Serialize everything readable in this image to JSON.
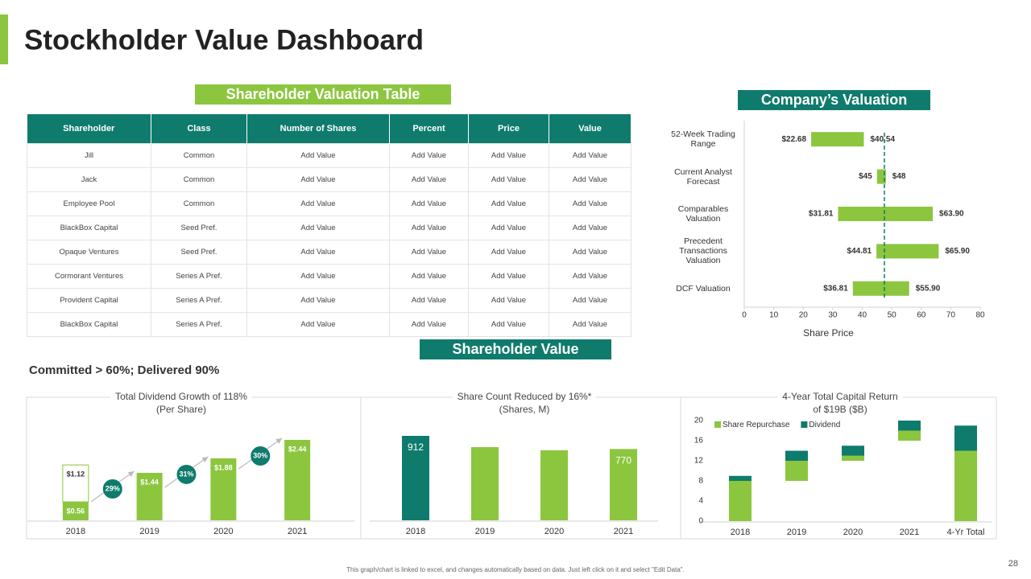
{
  "title": "Stockholder Value Dashboard",
  "page_number": 28,
  "footnote": "This graph/chart is linked to excel, and changes automatically based on data. Just left click on it and select \"Edit Data\".",
  "table": {
    "title": "Shareholder Valuation Table",
    "columns": [
      "Shareholder",
      "Class",
      "Number of Shares",
      "Percent",
      "Price",
      "Value"
    ],
    "rows": [
      [
        "Jill",
        "Common",
        "Add Value",
        "Add Value",
        "Add Value",
        "Add Value"
      ],
      [
        "Jack",
        "Common",
        "Add Value",
        "Add Value",
        "Add Value",
        "Add Value"
      ],
      [
        "Employee Pool",
        "Common",
        "Add Value",
        "Add Value",
        "Add Value",
        "Add Value"
      ],
      [
        "BlackBox Capital",
        "Seed Pref.",
        "Add Value",
        "Add Value",
        "Add Value",
        "Add Value"
      ],
      [
        "Opaque Ventures",
        "Seed Pref.",
        "Add Value",
        "Add Value",
        "Add Value",
        "Add Value"
      ],
      [
        "Cormorant Ventures",
        "Series A Pref.",
        "Add Value",
        "Add Value",
        "Add Value",
        "Add Value"
      ],
      [
        "Provident Capital",
        "Series A Pref.",
        "Add Value",
        "Add Value",
        "Add Value",
        "Add Value"
      ],
      [
        "BlackBox Capital",
        "Series A Pref.",
        "Add Value",
        "Add Value",
        "Add Value",
        "Add Value"
      ]
    ]
  },
  "section_title": "Shareholder Value",
  "section_subtitle": "Committed > 60%; Delivered 90%",
  "chart_data": [
    {
      "type": "range-bar",
      "title": "Company’s Valuation",
      "categories": [
        "52-Week Trading Range",
        "Current Analyst Forecast",
        "Comparables Valuation",
        "Precedent Transactions Valuation",
        "DCF Valuation"
      ],
      "low": [
        22.68,
        45,
        31.81,
        44.81,
        36.81
      ],
      "high": [
        40.54,
        48,
        63.9,
        65.9,
        55.9
      ],
      "low_labels": [
        "$22.68",
        "$45",
        "$31.81",
        "$44.81",
        "$36.81"
      ],
      "high_labels": [
        "$40.54",
        "$48",
        "$63.90",
        "$65.90",
        "$55.90"
      ],
      "color": "#8cc63f",
      "xlim": [
        0,
        80
      ],
      "xticks": [
        0,
        10,
        20,
        30,
        40,
        50,
        60,
        70,
        80
      ],
      "xlabel": "Share Price",
      "reference_line": 47.5,
      "reference_color": "#0f7b6c"
    },
    {
      "type": "stacked-bar",
      "title": "Total Dividend  Growth of 118%",
      "subtitle": "(Per Share)",
      "categories": [
        "2018",
        "2019",
        "2020",
        "2021"
      ],
      "series": [
        {
          "color": "#8cc63f",
          "values": [
            0.56,
            1.44,
            1.88,
            2.44
          ],
          "value_labels": [
            "$0.56",
            "$1.44",
            "$1.88",
            "$2.44"
          ]
        },
        {
          "color": "#ffffff",
          "values": [
            1.12,
            null,
            null,
            null
          ],
          "value_labels": [
            "$1.12",
            null,
            null,
            null
          ]
        }
      ],
      "annotations": [
        "29%",
        "31%",
        "30%"
      ],
      "annotation_color": "#0f7b6c"
    },
    {
      "type": "bar",
      "title": "Share Count Reduced by 16%*",
      "subtitle": "(Shares, M)",
      "categories": [
        "2018",
        "2019",
        "2020",
        "2021"
      ],
      "values": [
        912,
        790,
        757,
        770
      ],
      "value_labels": [
        "912",
        null,
        null,
        "770"
      ],
      "colors": [
        "#0f7b6c",
        "#8cc63f",
        "#8cc63f",
        "#8cc63f"
      ]
    },
    {
      "type": "stacked-bar",
      "title": "4-Year Total Capital Return",
      "subtitle": "of $19B ($B)",
      "categories": [
        "2018",
        "2019",
        "2020",
        "2021",
        "4-Yr Total"
      ],
      "series": [
        {
          "color": "none",
          "values": [
            0,
            8,
            12,
            16,
            0
          ]
        },
        {
          "name": "Share Repurchase",
          "color": "#8cc63f",
          "values": [
            8,
            4,
            1,
            2,
            14
          ]
        },
        {
          "name": "Dividend",
          "color": "#0f7b6c",
          "values": [
            1,
            2,
            2,
            2,
            5
          ]
        }
      ],
      "ylim": [
        0,
        20
      ],
      "yticks": [
        0,
        4,
        8,
        12,
        16,
        20
      ],
      "legend": "top-left"
    }
  ]
}
